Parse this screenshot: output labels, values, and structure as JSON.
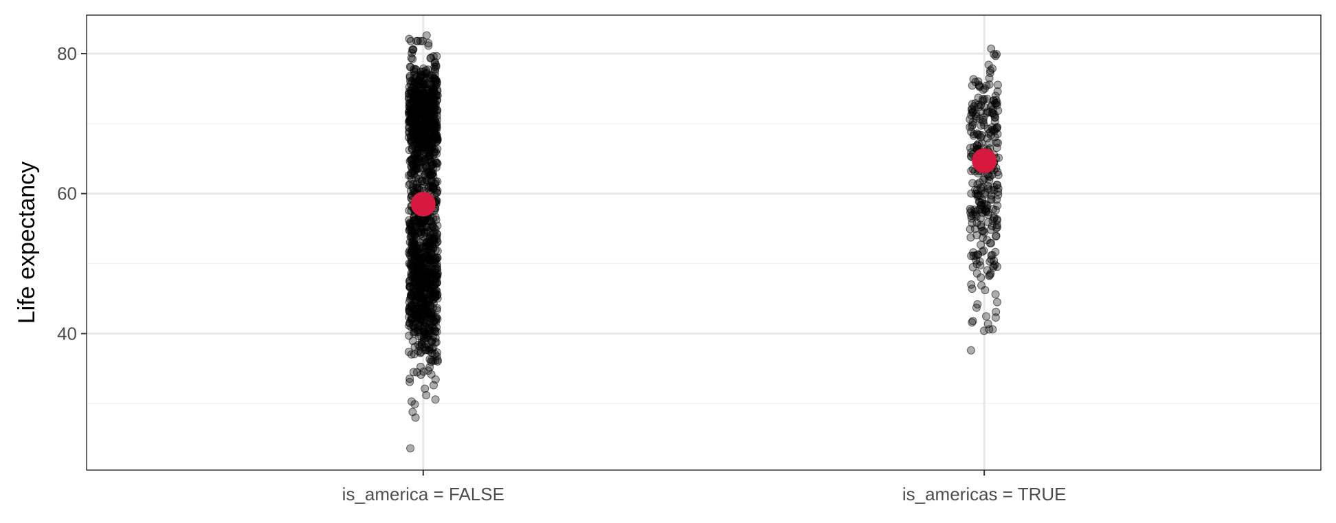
{
  "chart_data": {
    "type": "scatter",
    "title": "",
    "xlabel": "",
    "ylabel": "Life expectancy",
    "ylim": [
      20.5,
      85.5
    ],
    "yticks": [
      40,
      60,
      80
    ],
    "grid": true,
    "legend": "none",
    "categories": [
      "is_america = FALSE",
      "is_americas = TRUE"
    ],
    "colors": {
      "points": "#000000",
      "mean": "#d7193f",
      "grid_major": "#e8e8e8",
      "grid_minor": "#f2f2f2",
      "panel_border": "#333333"
    },
    "groups": [
      {
        "category": "is_america = FALSE",
        "mean": 58.5,
        "min": 23.6,
        "max": 82.6,
        "n_points": 1404,
        "sample_outliers": [
          23.6,
          28.8,
          29.9,
          30.3,
          31.2,
          82.1,
          82.6
        ]
      },
      {
        "category": "is_americas = TRUE",
        "mean": 64.7,
        "min": 37.6,
        "max": 80.7,
        "n_points": 300,
        "sample_outliers": [
          37.6,
          40.4,
          41.8,
          42.3,
          80.7
        ]
      }
    ]
  }
}
